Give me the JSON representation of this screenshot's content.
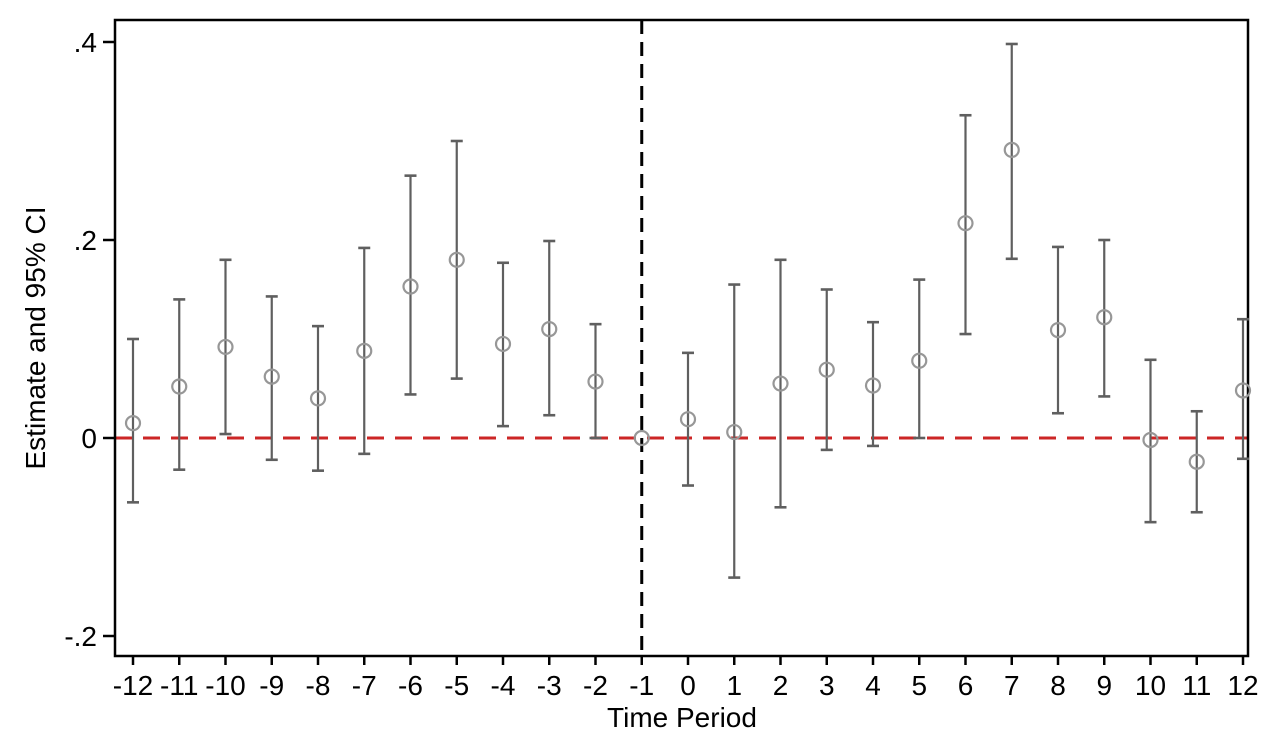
{
  "figure": {
    "background_color": "#ffffff",
    "frame_color": "#000000"
  },
  "chart_data": {
    "type": "scatter",
    "subtype": "event-study-errorbar",
    "title": "",
    "xlabel": "Time Period",
    "ylabel": "Estimate and 95% CI",
    "x": [
      -12,
      -11,
      -10,
      -9,
      -8,
      -7,
      -6,
      -5,
      -4,
      -3,
      -2,
      -1,
      0,
      1,
      2,
      3,
      4,
      5,
      6,
      7,
      8,
      9,
      10,
      11,
      12
    ],
    "series": [
      {
        "name": "estimate",
        "values": [
          0.015,
          0.052,
          0.092,
          0.062,
          0.04,
          0.088,
          0.153,
          0.18,
          0.095,
          0.11,
          0.057,
          0.0,
          0.019,
          0.006,
          0.055,
          0.069,
          0.053,
          0.078,
          0.217,
          0.291,
          0.109,
          0.122,
          -0.002,
          -0.024,
          0.048
        ]
      },
      {
        "name": "ci_lower_95",
        "values": [
          -0.065,
          -0.032,
          0.004,
          -0.022,
          -0.033,
          -0.016,
          0.044,
          0.06,
          0.012,
          0.023,
          0.0,
          0.0,
          -0.048,
          -0.141,
          -0.07,
          -0.012,
          -0.008,
          0.0,
          0.105,
          0.181,
          0.025,
          0.042,
          -0.085,
          -0.075,
          -0.021
        ]
      },
      {
        "name": "ci_upper_95",
        "values": [
          0.1,
          0.14,
          0.18,
          0.143,
          0.113,
          0.192,
          0.265,
          0.3,
          0.177,
          0.199,
          0.115,
          0.0,
          0.086,
          0.155,
          0.18,
          0.15,
          0.117,
          0.16,
          0.326,
          0.398,
          0.193,
          0.2,
          0.079,
          0.027,
          0.12
        ]
      }
    ],
    "x_tick_labels": [
      "-12",
      "-11",
      "-10",
      "-9",
      "-8",
      "-7",
      "-6",
      "-5",
      "-4",
      "-3",
      "-2",
      "-1",
      "0",
      "1",
      "2",
      "3",
      "4",
      "5",
      "6",
      "7",
      "8",
      "9",
      "10",
      "11",
      "12"
    ],
    "y_ticks": [
      -0.2,
      0,
      0.2,
      0.4
    ],
    "y_tick_labels": [
      "-.2",
      "0",
      ".2",
      ".4"
    ],
    "xlim": [
      -12.4,
      12.35
    ],
    "ylim": [
      -0.225,
      0.422
    ],
    "grid": false,
    "legend": false,
    "reference_lines": [
      {
        "orientation": "horizontal",
        "value": 0,
        "style": "dashed",
        "color": "#cc2626"
      },
      {
        "orientation": "vertical",
        "value": -1,
        "style": "dashed",
        "color": "#000000"
      }
    ],
    "marker": {
      "shape": "hollow-circle",
      "color": "#979797"
    },
    "errorbar_color": "#5f5f5f",
    "text_color": "#000000"
  }
}
